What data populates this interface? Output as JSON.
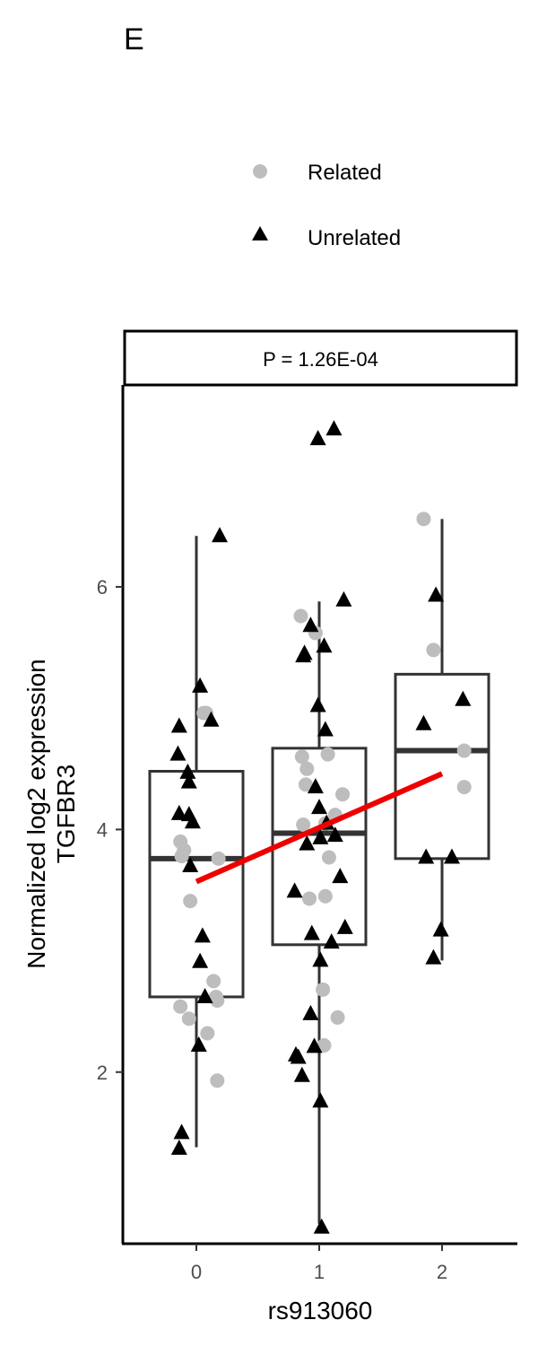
{
  "panel_label": "E",
  "chart_data": {
    "type": "scatter",
    "title": "",
    "facet_label": "P = 1.26E-04",
    "xlabel": "rs913060",
    "ylabel": [
      "Normalized log2 expression",
      "TGFBR3"
    ],
    "x_categories": [
      "0",
      "1",
      "2"
    ],
    "y_ticks": [
      2,
      4,
      6
    ],
    "ylim": [
      0.6,
      7.65
    ],
    "legend": {
      "placement": "top",
      "entries": [
        {
          "name": "Related",
          "shape": "circle",
          "color": "#bdbdbd"
        },
        {
          "name": "Unrelated",
          "shape": "triangle",
          "color": "#000000"
        }
      ]
    },
    "boxes": [
      {
        "x": "0",
        "whisker_low": 1.38,
        "q1": 2.62,
        "median": 3.76,
        "q3": 4.48,
        "whisker_high": 6.42
      },
      {
        "x": "1",
        "whisker_low": 0.75,
        "q1": 3.05,
        "median": 3.97,
        "q3": 4.67,
        "whisker_high": 5.88
      },
      {
        "x": "2",
        "whisker_low": 2.92,
        "q1": 3.76,
        "median": 4.65,
        "q3": 5.28,
        "whisker_high": 6.56
      }
    ],
    "trend_line": {
      "color": "#ee0000",
      "x": [
        0,
        2
      ],
      "y": [
        3.57,
        4.46
      ]
    },
    "series": [
      {
        "name": "Related",
        "points": [
          [
            -0.13,
            3.9
          ],
          [
            -0.12,
            3.78
          ],
          [
            -0.1,
            3.83
          ],
          [
            -0.13,
            2.54
          ],
          [
            -0.06,
            2.44
          ],
          [
            -0.05,
            3.41
          ],
          [
            0.06,
            4.96
          ],
          [
            0.08,
            4.96
          ],
          [
            0.09,
            2.32
          ],
          [
            0.14,
            2.75
          ],
          [
            0.16,
            2.62
          ],
          [
            0.17,
            2.59
          ],
          [
            0.17,
            1.93
          ],
          [
            0.18,
            3.76
          ],
          [
            0.85,
            5.76
          ],
          [
            0.86,
            4.6
          ],
          [
            0.87,
            4.04
          ],
          [
            0.89,
            4.37
          ],
          [
            0.9,
            4.5
          ],
          [
            0.92,
            3.43
          ],
          [
            0.97,
            5.62
          ],
          [
            1.03,
            2.68
          ],
          [
            1.04,
            2.22
          ],
          [
            1.05,
            4.05
          ],
          [
            1.05,
            3.45
          ],
          [
            1.07,
            4.62
          ],
          [
            1.08,
            3.77
          ],
          [
            1.13,
            4.12
          ],
          [
            1.15,
            2.45
          ],
          [
            1.19,
            4.29
          ],
          [
            1.85,
            6.56
          ],
          [
            1.93,
            5.48
          ],
          [
            2.18,
            4.65
          ],
          [
            2.18,
            4.35
          ]
        ]
      },
      {
        "name": "Unrelated",
        "points": [
          [
            -0.14,
            4.85
          ],
          [
            -0.15,
            4.62
          ],
          [
            -0.14,
            4.13
          ],
          [
            -0.12,
            1.5
          ],
          [
            -0.14,
            1.37
          ],
          [
            -0.07,
            4.47
          ],
          [
            -0.06,
            4.39
          ],
          [
            -0.06,
            4.12
          ],
          [
            -0.05,
            3.7
          ],
          [
            -0.03,
            4.06
          ],
          [
            0.03,
            5.18
          ],
          [
            0.03,
            2.91
          ],
          [
            0.05,
            3.12
          ],
          [
            0.02,
            2.22
          ],
          [
            0.07,
            2.62
          ],
          [
            0.12,
            4.9
          ],
          [
            0.19,
            6.42
          ],
          [
            0.8,
            3.49
          ],
          [
            0.81,
            2.14
          ],
          [
            0.83,
            2.12
          ],
          [
            0.86,
            1.97
          ],
          [
            0.87,
            5.43
          ],
          [
            0.88,
            5.45
          ],
          [
            0.93,
            5.68
          ],
          [
            0.9,
            3.88
          ],
          [
            0.93,
            2.48
          ],
          [
            0.96,
            2.21
          ],
          [
            0.94,
            3.14
          ],
          [
            0.97,
            4.35
          ],
          [
            0.99,
            7.22
          ],
          [
            0.99,
            5.02
          ],
          [
            1.0,
            4.18
          ],
          [
            1.01,
            3.93
          ],
          [
            1.01,
            2.92
          ],
          [
            1.01,
            1.76
          ],
          [
            1.02,
            0.72
          ],
          [
            1.04,
            5.51
          ],
          [
            1.05,
            4.82
          ],
          [
            1.06,
            4.05
          ],
          [
            1.1,
            3.07
          ],
          [
            1.12,
            7.3
          ],
          [
            1.13,
            3.95
          ],
          [
            1.17,
            3.61
          ],
          [
            1.2,
            5.89
          ],
          [
            1.21,
            3.19
          ],
          [
            1.85,
            4.87
          ],
          [
            1.87,
            3.77
          ],
          [
            1.95,
            5.93
          ],
          [
            1.93,
            2.94
          ],
          [
            1.99,
            3.17
          ],
          [
            2.08,
            3.77
          ],
          [
            2.17,
            5.07
          ]
        ]
      }
    ]
  }
}
